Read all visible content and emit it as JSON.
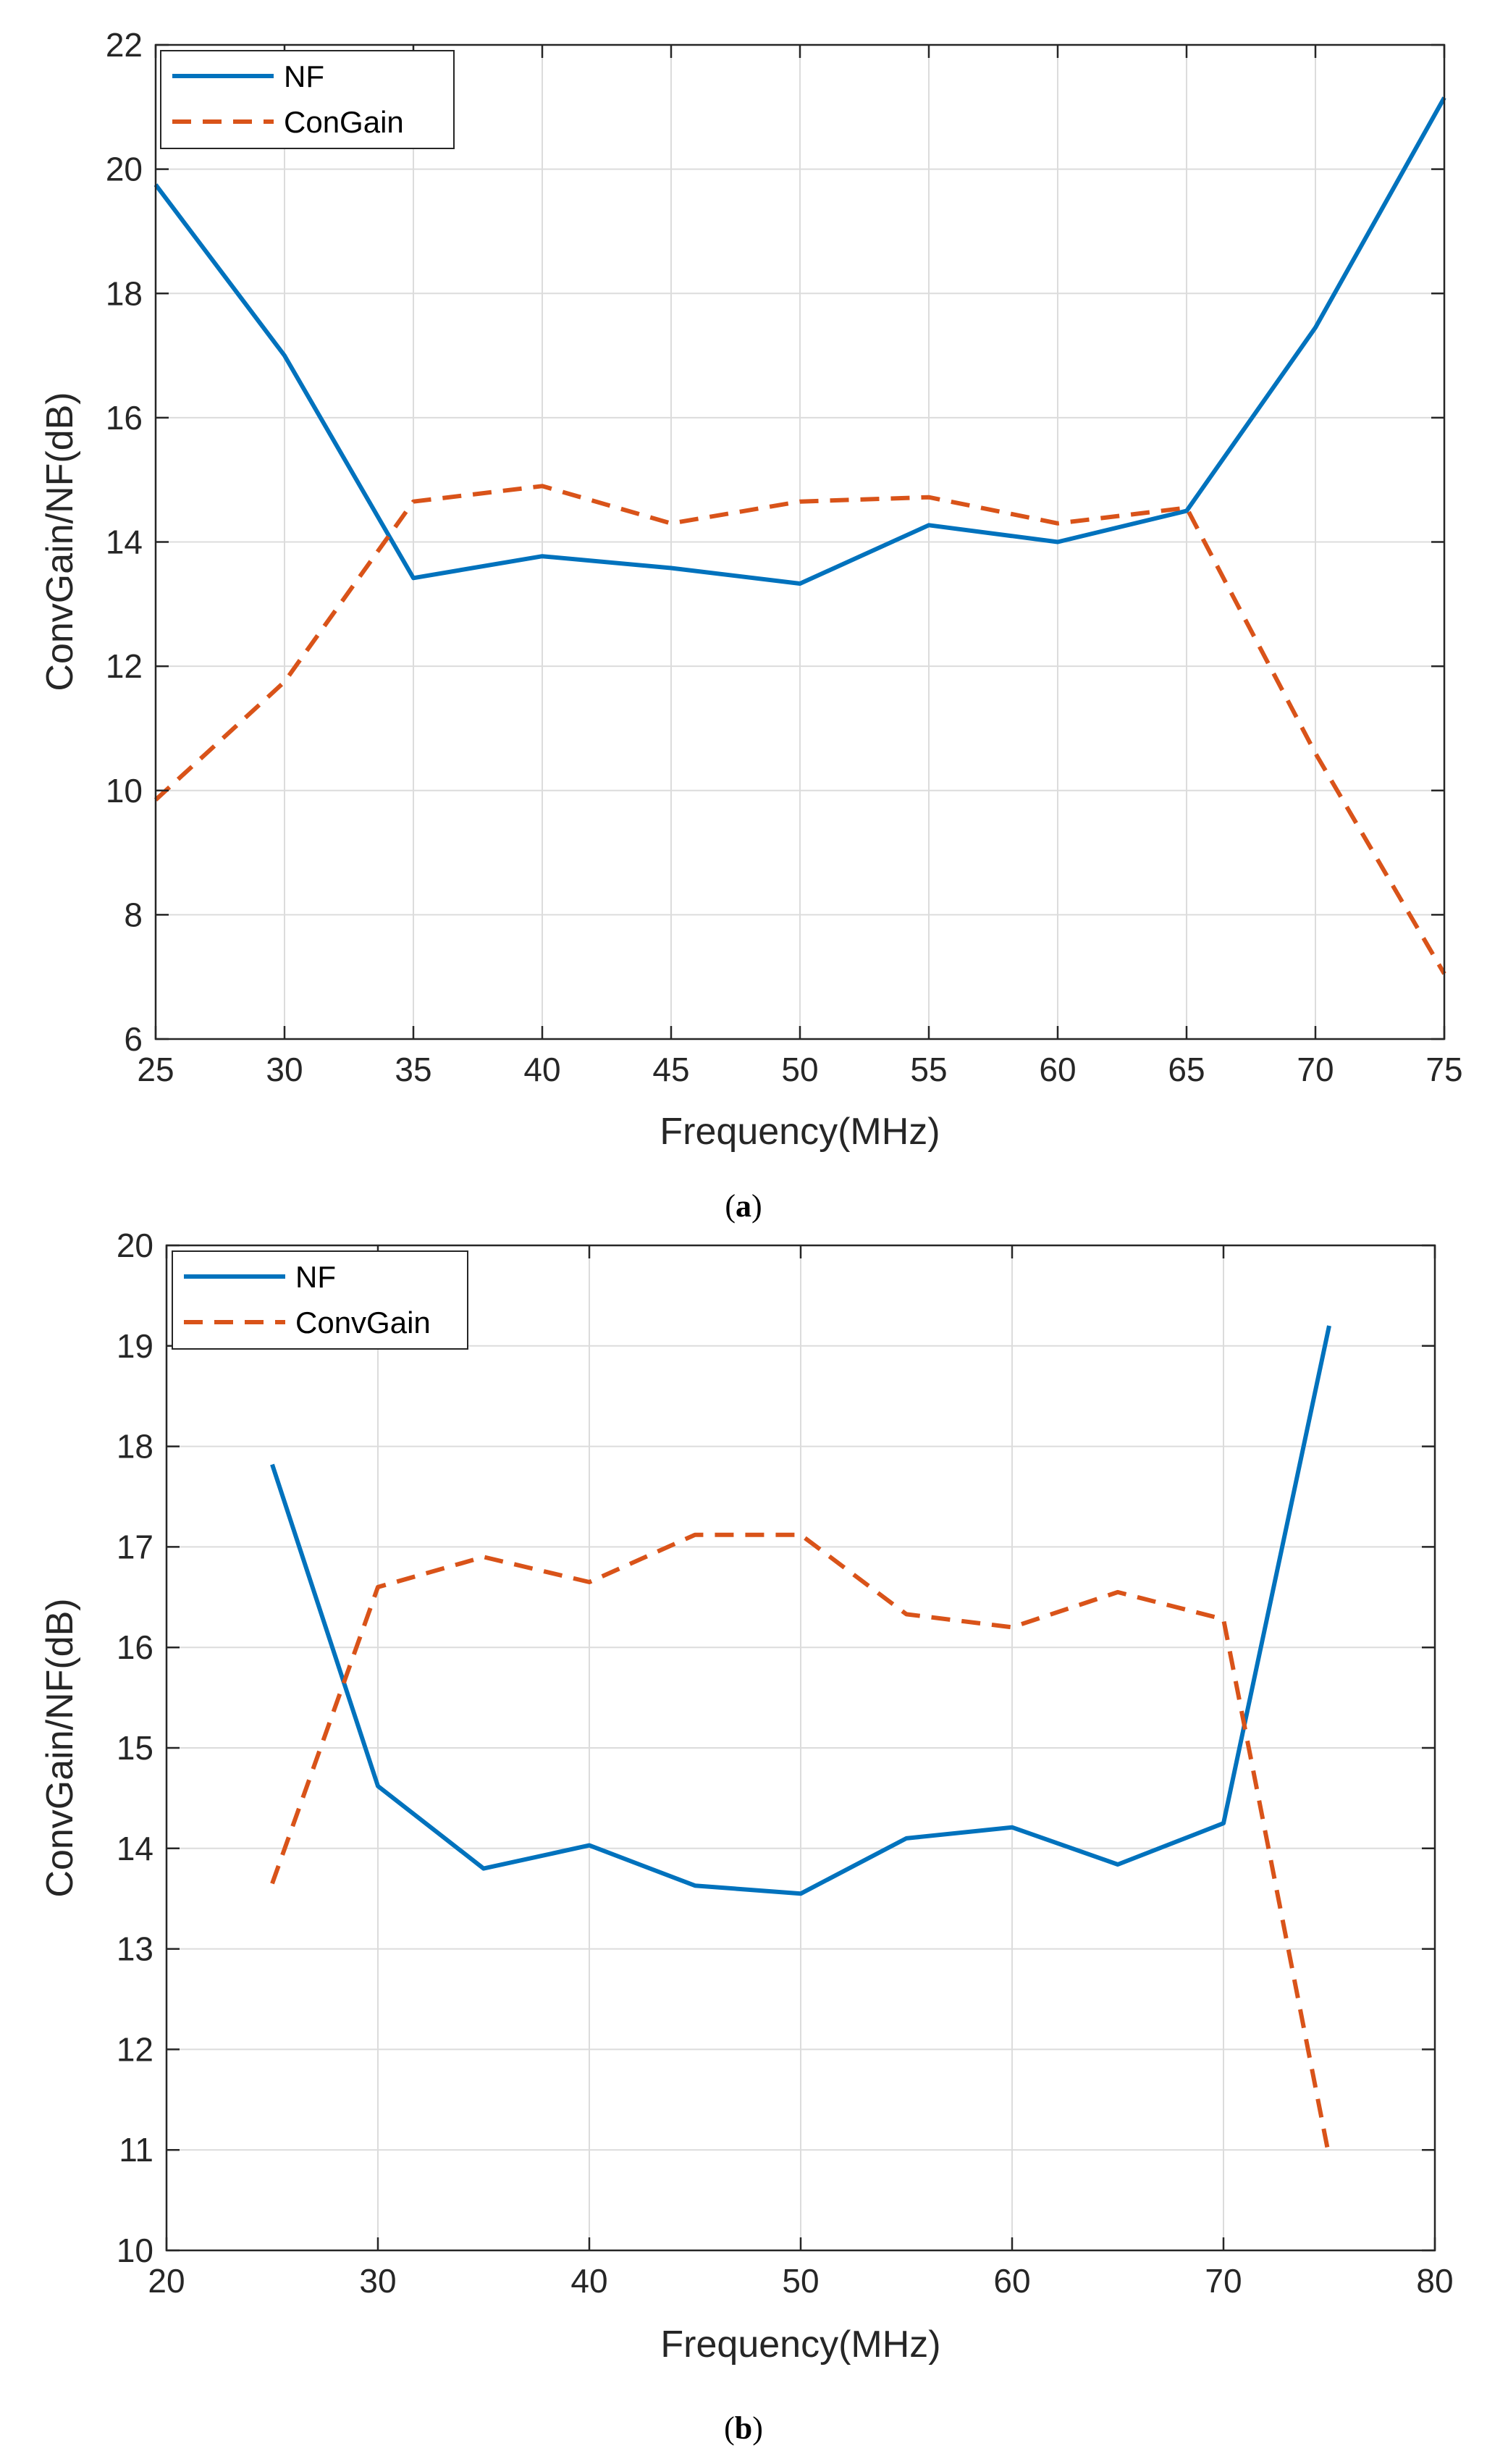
{
  "colors": {
    "nf": "#0072BD",
    "gain": "#D95319",
    "grid": "#dcdcdc",
    "axis": "#262626"
  },
  "chart_data": [
    {
      "id": "a",
      "type": "line",
      "caption": "a",
      "xlabel": "Frequency(MHz)",
      "ylabel": "ConvGain/NF(dB)",
      "xlim": [
        25,
        75
      ],
      "ylim": [
        6,
        22
      ],
      "xticks": [
        25,
        30,
        35,
        40,
        45,
        50,
        55,
        60,
        65,
        70,
        75
      ],
      "yticks": [
        6,
        8,
        10,
        12,
        14,
        16,
        18,
        20,
        22
      ],
      "grid": true,
      "legend_position": "top-left",
      "series": [
        {
          "name": "NF",
          "style": "solid",
          "color": "#0072BD",
          "x": [
            25,
            30,
            35,
            40,
            45,
            50,
            55,
            60,
            65,
            70,
            75
          ],
          "y": [
            19.75,
            17.0,
            13.42,
            13.77,
            13.58,
            13.33,
            14.27,
            14.0,
            14.5,
            17.45,
            21.15
          ]
        },
        {
          "name": "ConGain",
          "style": "dashed",
          "color": "#D95319",
          "x": [
            25,
            30,
            35,
            40,
            45,
            50,
            55,
            60,
            65,
            70,
            75
          ],
          "y": [
            9.85,
            11.75,
            14.65,
            14.9,
            14.3,
            14.65,
            14.72,
            14.3,
            14.55,
            10.6,
            7.05
          ]
        }
      ]
    },
    {
      "id": "b",
      "type": "line",
      "caption": "b",
      "xlabel": "Frequency(MHz)",
      "ylabel": "ConvGain/NF(dB)",
      "xlim": [
        20,
        80
      ],
      "ylim": [
        10,
        20
      ],
      "xticks": [
        20,
        30,
        40,
        50,
        60,
        70,
        80
      ],
      "yticks": [
        10,
        11,
        12,
        13,
        14,
        15,
        16,
        17,
        18,
        19,
        20
      ],
      "grid": true,
      "legend_position": "top-left",
      "series": [
        {
          "name": "NF",
          "style": "solid",
          "color": "#0072BD",
          "x": [
            25,
            30,
            35,
            40,
            45,
            50,
            55,
            60,
            65,
            70,
            75
          ],
          "y": [
            17.82,
            14.62,
            13.8,
            14.03,
            13.63,
            13.55,
            14.1,
            14.21,
            13.84,
            14.25,
            19.2
          ]
        },
        {
          "name": "ConvGain",
          "style": "dashed",
          "color": "#D95319",
          "x": [
            25,
            30,
            35,
            40,
            45,
            50,
            55,
            60,
            65,
            70,
            75
          ],
          "y": [
            13.65,
            16.6,
            16.9,
            16.65,
            17.12,
            17.12,
            16.33,
            16.2,
            16.55,
            16.28,
            10.93
          ]
        }
      ]
    }
  ]
}
